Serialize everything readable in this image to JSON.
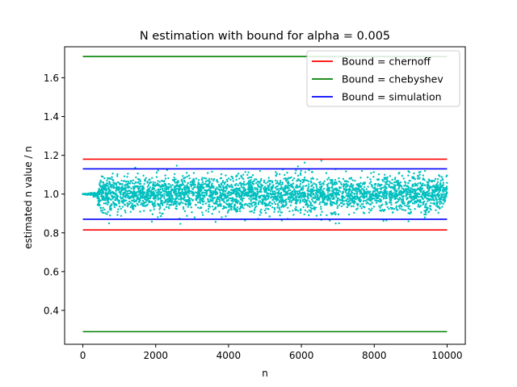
{
  "chart_data": {
    "type": "scatter",
    "title": "N estimation with bound for alpha = 0.005",
    "xlabel": "n",
    "ylabel": "estimated n value / n",
    "xlim": [
      -500,
      10500
    ],
    "ylim": [
      0.225,
      1.76
    ],
    "xticks": [
      0,
      2000,
      4000,
      6000,
      8000,
      10000
    ],
    "xtick_labels": [
      "0",
      "2000",
      "4000",
      "6000",
      "8000",
      "10000"
    ],
    "yticks": [
      0.4,
      0.6,
      0.8,
      1.0,
      1.2,
      1.4,
      1.6
    ],
    "ytick_labels": [
      "0.4",
      "0.6",
      "0.8",
      "1.0",
      "1.2",
      "1.4",
      "1.6"
    ],
    "grid": false,
    "legend_position": "top-right",
    "bounds": [
      {
        "name": "Bound = chernoff",
        "color": "#ff0000",
        "upper": 1.18,
        "lower": 0.815,
        "x_range": [
          0,
          10000
        ]
      },
      {
        "name": "Bound = chebyshev",
        "color": "#008000",
        "upper": 1.71,
        "lower": 0.29,
        "x_range": [
          0,
          10000
        ]
      },
      {
        "name": "Bound = simulation",
        "color": "#0000ff",
        "upper": 1.13,
        "lower": 0.87,
        "x_range": [
          0,
          10000
        ]
      }
    ],
    "scatter_series": {
      "color": "#00bfbf",
      "x_range": [
        0,
        10000
      ],
      "center": 1.0,
      "spread_start_x": 400,
      "typical_band": [
        0.9,
        1.1
      ],
      "extreme_band": [
        0.84,
        1.18
      ]
    }
  }
}
